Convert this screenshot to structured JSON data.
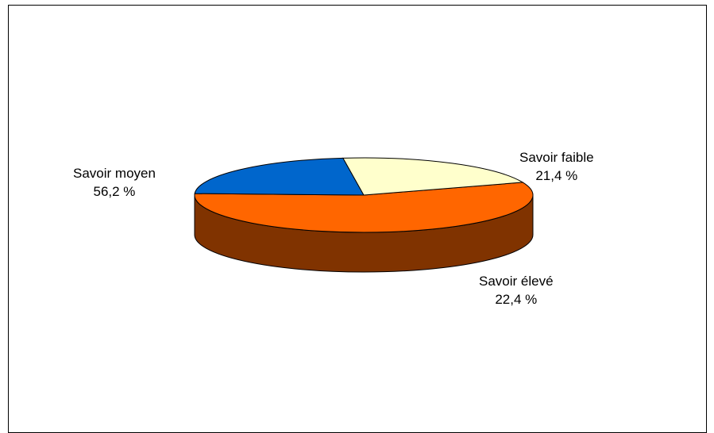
{
  "chart_data": {
    "type": "pie",
    "title": "",
    "style": "3d",
    "slices": [
      {
        "label": "Savoir moyen",
        "value": 56.2,
        "value_text": "56,2 %",
        "color": "#FF6600",
        "side_color": "#803300"
      },
      {
        "label": "Savoir faible",
        "value": 21.4,
        "value_text": "21,4 %",
        "color": "#FFFFCC",
        "side_color": "#808066"
      },
      {
        "label": "Savoir élevé",
        "value": 22.4,
        "value_text": "22,4 %",
        "color": "#0066CC",
        "side_color": "#003366"
      }
    ]
  }
}
